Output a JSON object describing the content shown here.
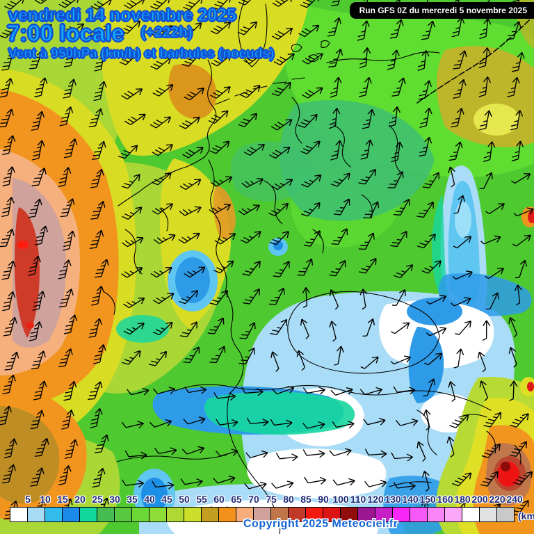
{
  "header": {
    "date": "vendredi 14 novembre 2025",
    "time": "7:00 locale",
    "run_offset": "(+222h)",
    "subtitle": "Vent à 950hPa (km/h) et barbules (noeuds)",
    "run_info": "Run GFS 0Z du mercredi 5 novembre 2025"
  },
  "footer": {
    "copyright": "Copyright 2025 Meteociel.fr",
    "unit": "(km"
  },
  "scale": {
    "labels": [
      "5",
      "10",
      "15",
      "20",
      "25",
      "30",
      "35",
      "40",
      "45",
      "50",
      "55",
      "60",
      "65",
      "70",
      "75",
      "80",
      "85",
      "90",
      "100",
      "110",
      "120",
      "130",
      "140",
      "150",
      "160",
      "180",
      "200",
      "220",
      "240"
    ],
    "cell_colors": [
      "#FFFFFF",
      "#A8DCF4",
      "#33BBEC",
      "#1B8AE8",
      "#12D69C",
      "#46BC52",
      "#58C840",
      "#6BD838",
      "#8EDD37",
      "#B0D834",
      "#CCDF2B",
      "#C49E1E",
      "#F2921D",
      "#F6AD7A",
      "#D1A29B",
      "#C1764A",
      "#C13A28",
      "#F31A12",
      "#DC1313",
      "#930C0C",
      "#9A1692",
      "#C620C6",
      "#F827F8",
      "#F659F6",
      "#F985F9",
      "#FBA8FB",
      "#FFFFFF",
      "#E1E1E1",
      "#C9C9C9"
    ]
  },
  "theme": {
    "title_fill": "#12AEF8",
    "title_outline": "#1150D8",
    "scale_label_color": "#1E2A78",
    "copyright_color": "#1464D2",
    "base_map_green": "#4FC930"
  }
}
